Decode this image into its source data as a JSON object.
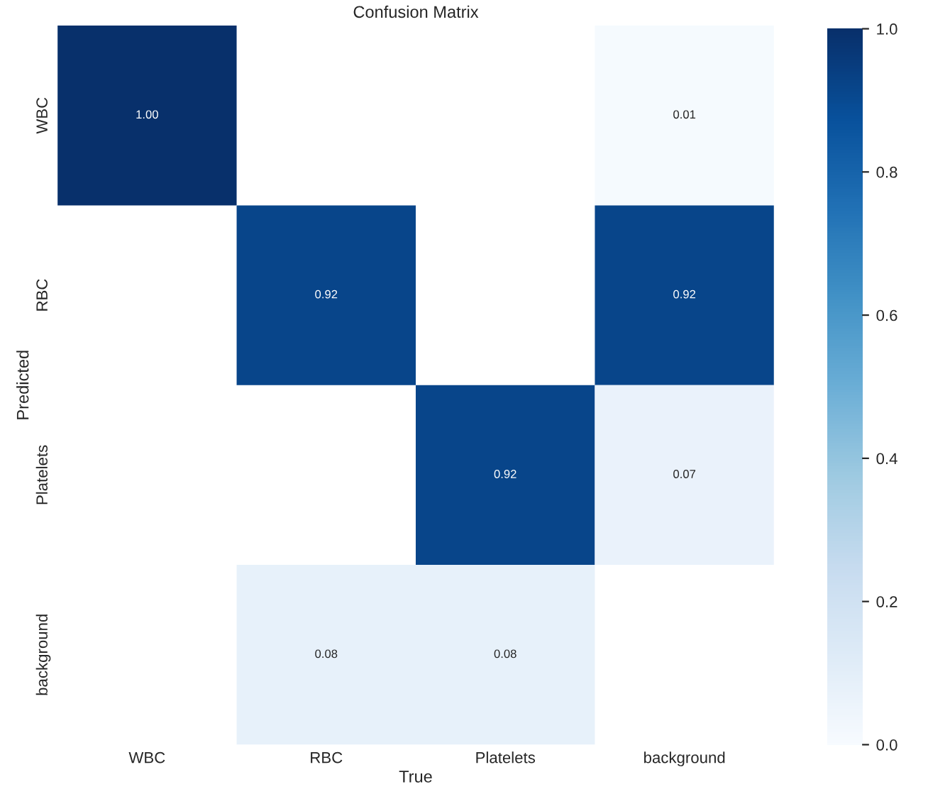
{
  "chart_data": {
    "type": "heatmap",
    "title": "Confusion Matrix",
    "xlabel": "True",
    "ylabel": "Predicted",
    "categories": [
      "WBC",
      "RBC",
      "Platelets",
      "background"
    ],
    "y_categories": [
      "WBC",
      "RBC",
      "Platelets",
      "background"
    ],
    "cells": [
      [
        1.0,
        null,
        null,
        0.01
      ],
      [
        null,
        0.92,
        null,
        0.92
      ],
      [
        null,
        null,
        0.92,
        0.07
      ],
      [
        null,
        0.08,
        0.08,
        null
      ]
    ],
    "cell_labels": [
      [
        "1.00",
        null,
        null,
        "0.01"
      ],
      [
        null,
        "0.92",
        null,
        "0.92"
      ],
      [
        null,
        null,
        "0.92",
        "0.07"
      ],
      [
        null,
        "0.08",
        "0.08",
        null
      ]
    ],
    "clim": [
      0,
      1
    ],
    "cticks": [
      {
        "value": 0,
        "label": "0.0"
      },
      0.2,
      0.4,
      0.6,
      0.8,
      {
        "value": 1,
        "label": "1.0"
      }
    ]
  }
}
